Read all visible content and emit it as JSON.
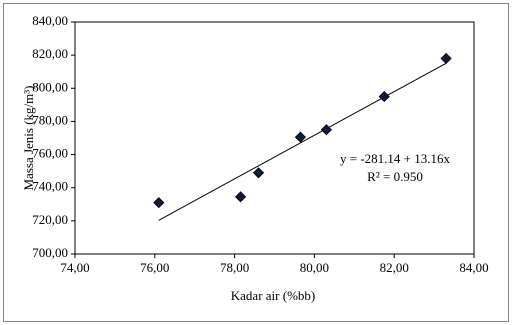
{
  "chart_data": {
    "type": "scatter",
    "x_label": "Kadar air (%bb)",
    "y_label": "Massa Jenis (kg/m³)",
    "x": [
      76.1,
      78.15,
      78.6,
      79.65,
      80.3,
      81.75,
      83.3
    ],
    "values": [
      731,
      734.5,
      749,
      770.5,
      775,
      795,
      818
    ],
    "color": "#0d1b3e",
    "xlim": [
      74,
      84
    ],
    "xticks": [
      {
        "value": 74,
        "label": "74,00"
      },
      {
        "value": 76,
        "label": "76,00"
      },
      {
        "value": 78,
        "label": "78,00"
      },
      {
        "value": 80,
        "label": "80,00"
      },
      {
        "value": 82,
        "label": "82,00"
      },
      {
        "value": 84,
        "label": "84,00"
      }
    ],
    "ylim": [
      700,
      840
    ],
    "yticks": [
      {
        "value": 700,
        "label": "700,00"
      },
      {
        "value": 720,
        "label": "720,00"
      },
      {
        "value": 740,
        "label": "740,00"
      },
      {
        "value": 760,
        "label": "760,00"
      },
      {
        "value": 780,
        "label": "780,00"
      },
      {
        "value": 800,
        "label": "800,00"
      },
      {
        "value": 820,
        "label": "820,00"
      },
      {
        "value": 840,
        "label": "840,00"
      }
    ],
    "grid": false,
    "trendline": {
      "intercept": -281.14,
      "slope": 13.16,
      "equation": "y = -281.14 + 13.16x",
      "r2": "R² = 0.950"
    }
  }
}
